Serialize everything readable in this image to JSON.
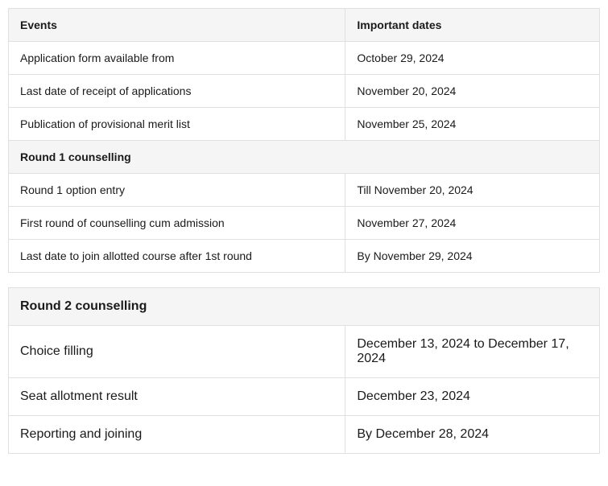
{
  "table1": {
    "headers": [
      "Events",
      "Important dates"
    ],
    "rows": [
      {
        "event": "Application form available from",
        "date": "October 29, 2024",
        "section": false
      },
      {
        "event": "Last date of receipt of applications",
        "date": "November 20, 2024",
        "section": false
      },
      {
        "event": "Publication of provisional merit list",
        "date": "November 25, 2024",
        "section": false
      },
      {
        "event": "Round 1 counselling",
        "date": "",
        "section": true
      },
      {
        "event": "Round 1 option entry",
        "date": "Till November 20, 2024",
        "section": false
      },
      {
        "event": "First round of counselling cum admission",
        "date": "November 27, 2024",
        "section": false
      },
      {
        "event": "Last date to join allotted course after 1st round",
        "date": "By November 29, 2024",
        "section": false
      }
    ]
  },
  "table2": {
    "rows": [
      {
        "event": "Round 2 counselling",
        "date": "",
        "section": true
      },
      {
        "event": "Choice filling",
        "date": "December 13, 2024 to December 17, 2024",
        "section": false
      },
      {
        "event": "Seat allotment result",
        "date": "December 23, 2024",
        "section": false
      },
      {
        "event": "Reporting and joining",
        "date": "By December 28, 2024",
        "section": false
      }
    ]
  },
  "styling": {
    "border_color": "#e0e0e0",
    "header_bg": "#f5f5f5",
    "text_color": "#1a1a1a",
    "body_bg": "#ffffff",
    "table1_font_size": 14,
    "table2_font_size": 16,
    "col1_width_pct": 57,
    "col2_width_pct": 43
  }
}
